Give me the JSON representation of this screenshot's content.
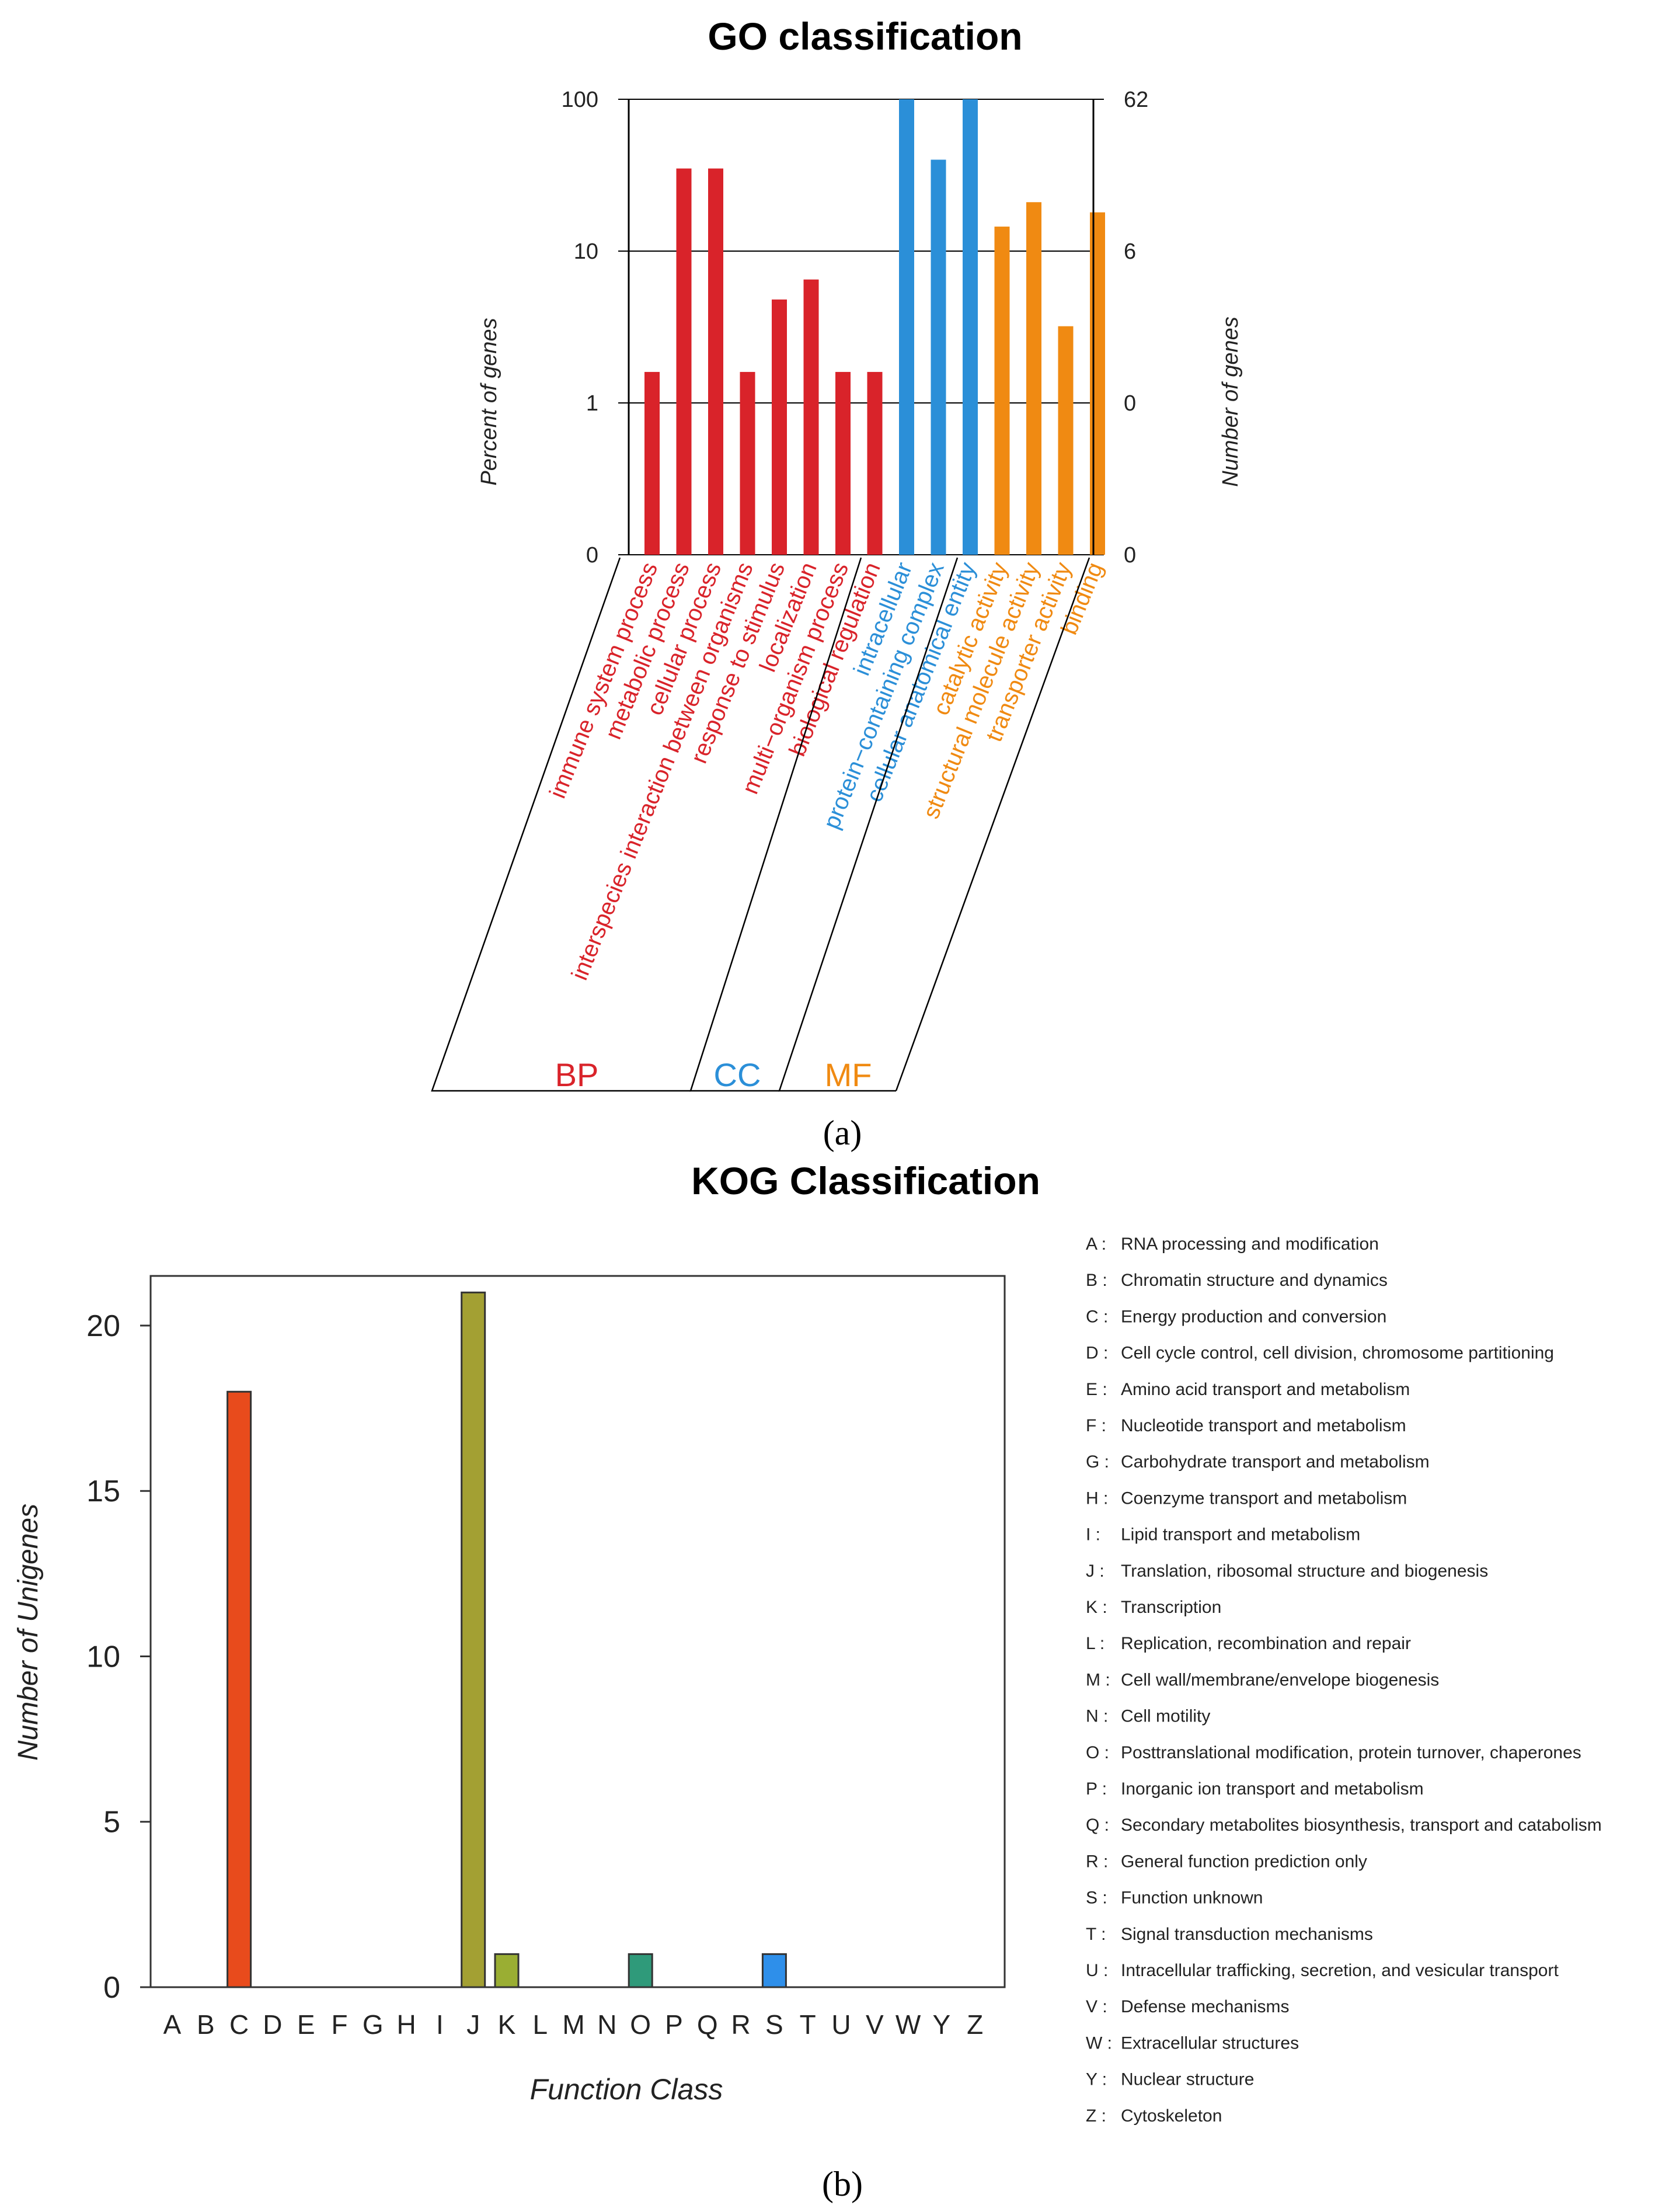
{
  "chart_data": [
    {
      "type": "bar",
      "title": "GO classification",
      "ylabel": "Percent of genes",
      "y2label": "Number of genes",
      "yscale": "log",
      "ytick_labels": [
        "0",
        "1",
        "10",
        "100"
      ],
      "y2tick_labels": [
        "0",
        "0",
        "6",
        "62"
      ],
      "categories": [
        "immune system process",
        "metabolic process",
        "cellular process",
        "interspecies interaction between organisms",
        "response to stimulus",
        "localization",
        "multi−organism process",
        "biological regulation",
        "intracellular",
        "protein−containing complex",
        "cellular anatomical entity",
        "catalytic activity",
        "structural molecule activity",
        "transporter activity",
        "binding"
      ],
      "values": [
        1.6,
        35,
        35,
        1.6,
        4.8,
        6.5,
        1.6,
        1.6,
        100,
        40,
        100,
        14.5,
        21,
        3.2,
        18
      ],
      "groups": [
        {
          "label": "BP",
          "color": "#d9232a",
          "count": 8
        },
        {
          "label": "CC",
          "color": "#2b8fd8",
          "count": 3
        },
        {
          "label": "MF",
          "color": "#f08a12",
          "count": 4
        }
      ],
      "grid": "y"
    },
    {
      "type": "bar",
      "title": "KOG Classification",
      "xlabel": "Function Class",
      "ylabel": "Number of Unigenes",
      "ylim": [
        0,
        21.5
      ],
      "yticks": [
        0,
        5,
        10,
        15,
        20
      ],
      "categories": [
        "A",
        "B",
        "C",
        "D",
        "E",
        "F",
        "G",
        "H",
        "I",
        "J",
        "K",
        "L",
        "M",
        "N",
        "O",
        "P",
        "Q",
        "R",
        "S",
        "T",
        "U",
        "V",
        "W",
        "Y",
        "Z"
      ],
      "values": [
        0,
        0,
        18,
        0,
        0,
        0,
        0,
        0,
        0,
        21,
        1,
        0,
        0,
        0,
        1,
        0,
        0,
        0,
        1,
        0,
        0,
        0,
        0,
        0,
        0
      ],
      "colors": {
        "C": "#e84b1c",
        "J": "#a3a033",
        "K": "#9aae33",
        "O": "#2f9a7a",
        "S": "#2e8fea"
      },
      "legend": [
        {
          "code": "A",
          "text": "RNA processing and modification"
        },
        {
          "code": "B",
          "text": "Chromatin structure and dynamics"
        },
        {
          "code": "C",
          "text": "Energy production and conversion"
        },
        {
          "code": "D",
          "text": "Cell cycle control, cell division, chromosome partitioning"
        },
        {
          "code": "E",
          "text": "Amino acid transport and metabolism"
        },
        {
          "code": "F",
          "text": "Nucleotide transport and metabolism"
        },
        {
          "code": "G",
          "text": "Carbohydrate transport and metabolism"
        },
        {
          "code": "H",
          "text": "Coenzyme transport and metabolism"
        },
        {
          "code": "I",
          "text": "Lipid transport and metabolism"
        },
        {
          "code": "J",
          "text": "Translation, ribosomal structure and biogenesis"
        },
        {
          "code": "K",
          "text": "Transcription"
        },
        {
          "code": "L",
          "text": "Replication, recombination and repair"
        },
        {
          "code": "M",
          "text": "Cell wall/membrane/envelope biogenesis"
        },
        {
          "code": "N",
          "text": "Cell motility"
        },
        {
          "code": "O",
          "text": "Posttranslational modification, protein turnover, chaperones"
        },
        {
          "code": "P",
          "text": "Inorganic ion transport and metabolism"
        },
        {
          "code": "Q",
          "text": "Secondary metabolites biosynthesis, transport and catabolism"
        },
        {
          "code": "R",
          "text": "General function prediction only"
        },
        {
          "code": "S",
          "text": "Function unknown"
        },
        {
          "code": "T",
          "text": "Signal transduction mechanisms"
        },
        {
          "code": "U",
          "text": "Intracellular trafficking, secretion, and vesicular transport"
        },
        {
          "code": "V",
          "text": "Defense mechanisms"
        },
        {
          "code": "W",
          "text": "Extracellular structures"
        },
        {
          "code": "Y",
          "text": "Nuclear structure"
        },
        {
          "code": "Z",
          "text": "Cytoskeleton"
        }
      ],
      "legend_position": "right",
      "grid": false
    }
  ],
  "captions": {
    "a": "(a)",
    "b": "(b)"
  }
}
